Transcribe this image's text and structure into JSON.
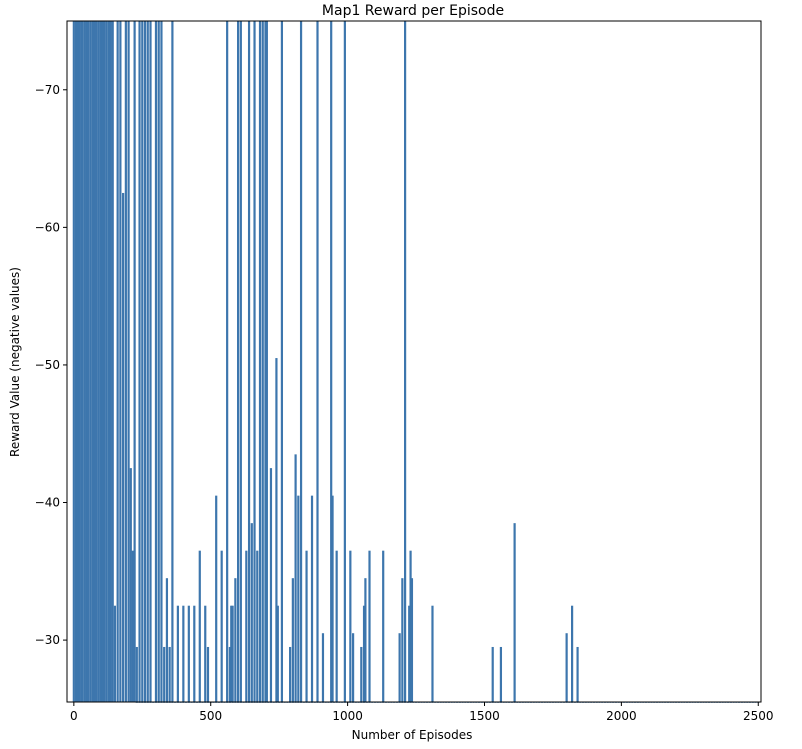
{
  "chart_data": {
    "type": "bar",
    "title": "Map1 Reward per Episode",
    "xlabel": "Number of Episodes",
    "ylabel": "Reward Value (negative values)",
    "xlim": [
      -25,
      2510
    ],
    "ylim": [
      -25.5,
      -75
    ],
    "y_inverted": true,
    "bar_color": "#3d76ad",
    "xticks": [
      0,
      500,
      1000,
      1500,
      2000,
      2500
    ],
    "xtick_labels": [
      "0",
      "500",
      "1000",
      "1500",
      "2000",
      "2500"
    ],
    "yticks": [
      -70,
      -60,
      -50,
      -40,
      -30
    ],
    "ytick_labels": [
      "−70",
      "−60",
      "−50",
      "−40",
      "−30"
    ],
    "baseline_value": -25.5,
    "baseline_range": [
      230,
      2500
    ],
    "baseline_step": 10,
    "x": [
      0,
      8,
      15,
      22,
      30,
      38,
      45,
      52,
      60,
      68,
      75,
      82,
      90,
      98,
      105,
      112,
      120,
      128,
      135,
      142,
      150,
      160,
      170,
      180,
      190,
      200,
      208,
      215,
      222,
      230,
      240,
      250,
      260,
      270,
      280,
      300,
      310,
      320,
      330,
      340,
      350,
      360,
      380,
      400,
      420,
      440,
      460,
      480,
      490,
      520,
      540,
      560,
      570,
      575,
      580,
      590,
      600,
      610,
      630,
      640,
      650,
      660,
      670,
      680,
      690,
      700,
      705,
      720,
      740,
      745,
      760,
      790,
      800,
      810,
      820,
      830,
      850,
      870,
      890,
      910,
      940,
      945,
      960,
      990,
      1010,
      1020,
      1050,
      1060,
      1065,
      1080,
      1130,
      1190,
      1200,
      1210,
      1225,
      1230,
      1235,
      1310,
      1530,
      1560,
      1610,
      1800,
      1820,
      1840
    ],
    "values": [
      -75,
      -75,
      -75,
      -75,
      -75,
      -75,
      -75,
      -75,
      -75,
      -75,
      -75,
      -75,
      -75,
      -75,
      -75,
      -75,
      -75,
      -75,
      -75,
      -75,
      -32.5,
      -75,
      -75,
      -62.5,
      -75,
      -75,
      -42.5,
      -36.5,
      -75,
      -29.5,
      -75,
      -75,
      -75,
      -75,
      -75,
      -75,
      -75,
      -75,
      -29.5,
      -34.5,
      -29.5,
      -75,
      -32.5,
      -32.5,
      -32.5,
      -32.5,
      -36.5,
      -32.5,
      -29.5,
      -40.5,
      -36.5,
      -75,
      -29.5,
      -32.5,
      -32.5,
      -34.5,
      -75,
      -75,
      -36.5,
      -75,
      -38.5,
      -75,
      -36.5,
      -75,
      -75,
      -75,
      -75,
      -42.5,
      -50.5,
      -32.5,
      -75,
      -29.5,
      -34.5,
      -43.5,
      -40.5,
      -75,
      -36.5,
      -40.5,
      -75,
      -30.5,
      -75,
      -40.5,
      -36.5,
      -75,
      -36.5,
      -30.5,
      -29.5,
      -32.5,
      -34.5,
      -36.5,
      -36.5,
      -30.5,
      -34.5,
      -75,
      -32.5,
      -36.5,
      -34.5,
      -32.5,
      -29.5,
      -29.5,
      -38.5,
      -30.5,
      -32.5,
      -29.5
    ]
  }
}
